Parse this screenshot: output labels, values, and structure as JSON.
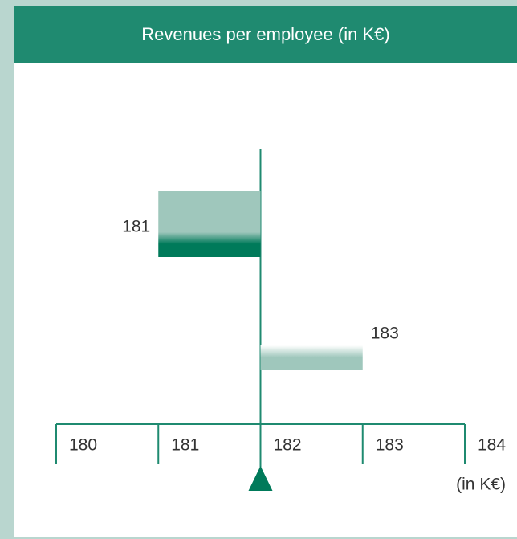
{
  "chart_data": {
    "type": "diverging-bar",
    "title": "Revenues per employee (in K€)",
    "values": [
      181,
      183
    ],
    "colors": [
      "#007a5a",
      "#9fc7bc"
    ],
    "reference": 182,
    "xlim": [
      180,
      184
    ],
    "xticks": [
      180,
      181,
      182,
      183,
      184
    ],
    "axis_unit": "(in K€)"
  }
}
